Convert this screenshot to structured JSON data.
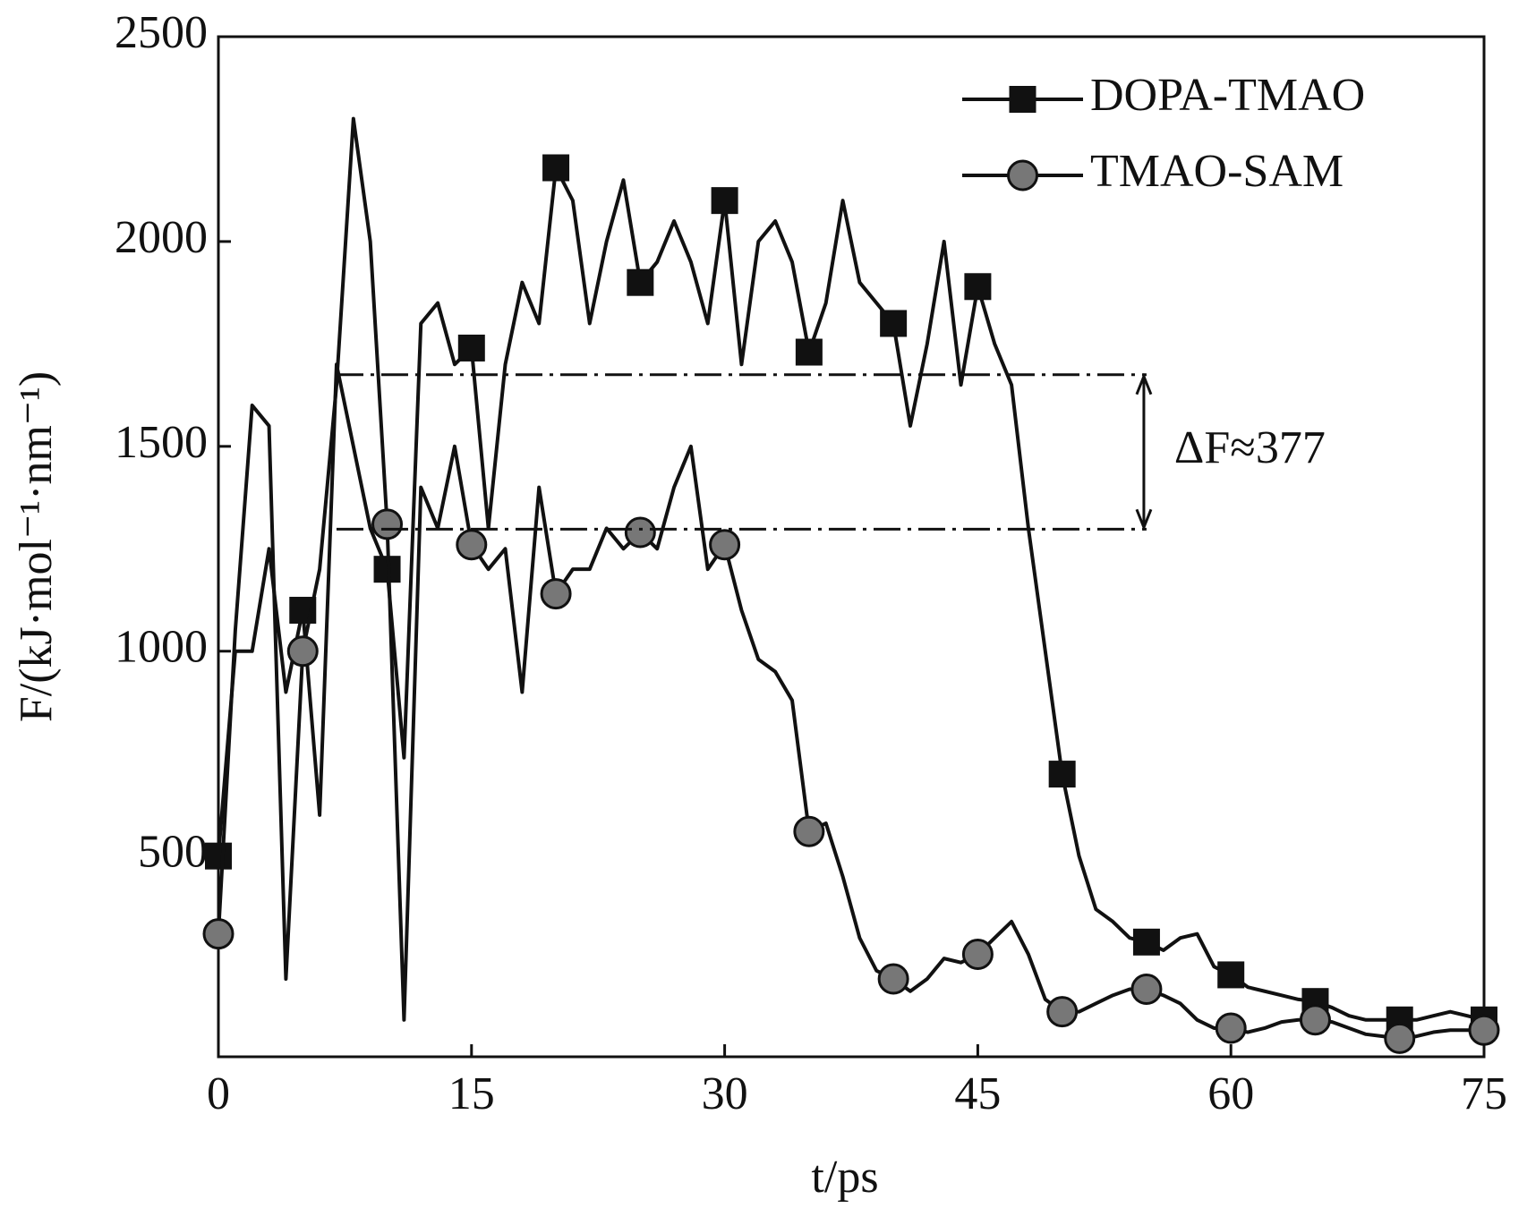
{
  "chart_data": {
    "type": "line",
    "x_label": "t/ps",
    "y_label": "F/(kJ·mol⁻¹·nm⁻¹)",
    "annotation": "ΔF≈377",
    "reference_lines": [
      1675,
      1298
    ],
    "x": [
      0,
      1,
      2,
      3,
      4,
      5,
      6,
      7,
      8,
      9,
      10,
      11,
      12,
      13,
      14,
      15,
      16,
      17,
      18,
      19,
      20,
      21,
      22,
      23,
      24,
      25,
      26,
      27,
      28,
      29,
      30,
      31,
      32,
      33,
      34,
      35,
      36,
      37,
      38,
      39,
      40,
      41,
      42,
      43,
      44,
      45,
      46,
      47,
      48,
      49,
      50,
      51,
      52,
      53,
      54,
      55,
      56,
      57,
      58,
      59,
      60,
      61,
      62,
      63,
      64,
      65,
      66,
      67,
      68,
      69,
      70,
      71,
      72,
      73,
      74,
      75
    ],
    "series": [
      {
        "name": "DOPA-TMAO",
        "color": "#111111",
        "marker": "square",
        "values": [
          500,
          1000,
          1000,
          1250,
          900,
          1100,
          600,
          1700,
          1500,
          1300,
          1200,
          740,
          1800,
          1850,
          1700,
          1740,
          1300,
          1700,
          1900,
          1800,
          2180,
          2100,
          1800,
          2000,
          2150,
          1900,
          1950,
          2050,
          1950,
          1800,
          2100,
          1700,
          2000,
          2050,
          1950,
          1730,
          1850,
          2100,
          1900,
          1850,
          1800,
          1550,
          1750,
          2000,
          1650,
          1890,
          1750,
          1650,
          1300,
          1000,
          700,
          500,
          370,
          340,
          300,
          290,
          270,
          300,
          310,
          230,
          210,
          180,
          170,
          160,
          150,
          145,
          130,
          110,
          100,
          100,
          100,
          100,
          110,
          120,
          110,
          100
        ]
      },
      {
        "name": "TMAO-SAM",
        "color": "#111111",
        "marker": "circle",
        "values": [
          310,
          1050,
          1600,
          1550,
          200,
          1000,
          1200,
          1650,
          2300,
          2000,
          1310,
          100,
          1400,
          1300,
          1500,
          1260,
          1200,
          1250,
          900,
          1400,
          1140,
          1200,
          1200,
          1300,
          1250,
          1290,
          1250,
          1400,
          1500,
          1200,
          1260,
          1100,
          980,
          950,
          880,
          560,
          580,
          450,
          300,
          220,
          200,
          170,
          200,
          250,
          240,
          260,
          300,
          340,
          260,
          150,
          120,
          120,
          140,
          160,
          175,
          175,
          160,
          140,
          100,
          80,
          80,
          70,
          80,
          95,
          100,
          100,
          95,
          80,
          65,
          60,
          55,
          60,
          70,
          75,
          75,
          75
        ]
      }
    ],
    "xlim": [
      0,
      75
    ],
    "xticks": [
      0,
      15,
      30,
      45,
      60,
      75
    ],
    "ylim": [
      10,
      2500
    ],
    "yticks": [
      500,
      1000,
      1500,
      2000,
      2500
    ],
    "legend": "upper right"
  }
}
